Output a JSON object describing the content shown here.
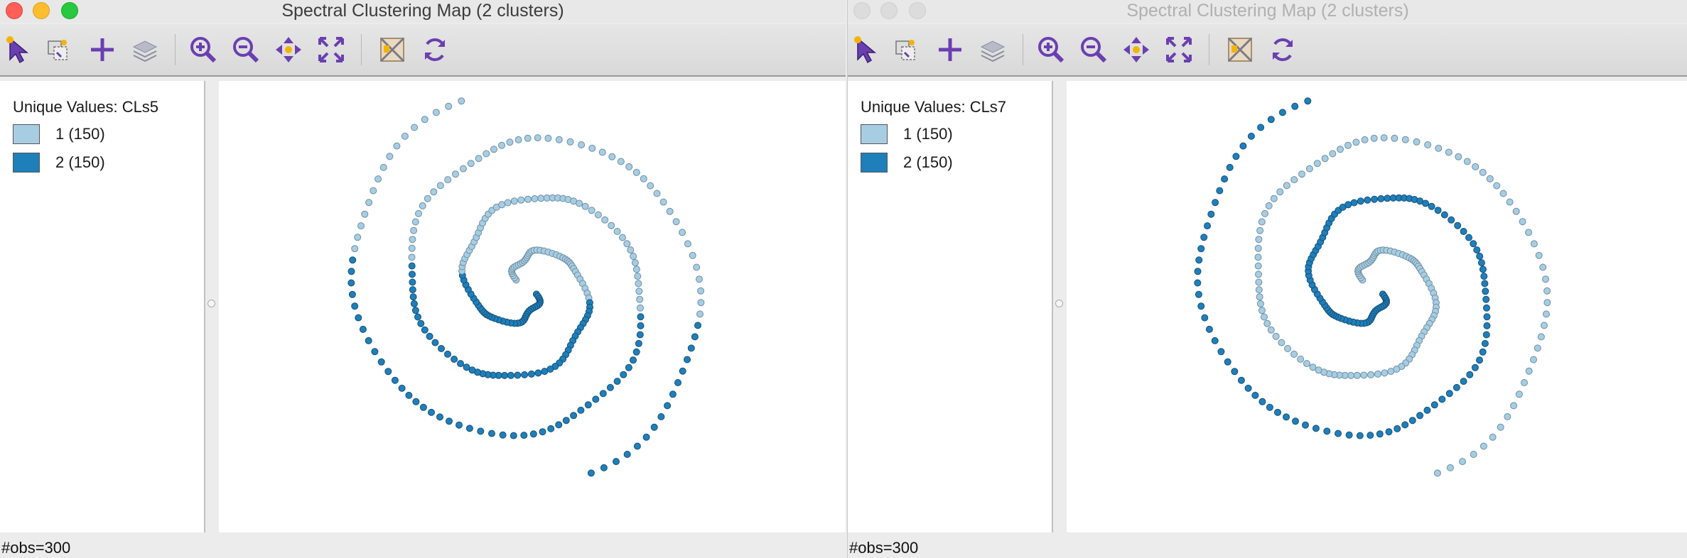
{
  "windows": [
    {
      "title": "Spectral Clustering Map (2 clusters)",
      "legend": {
        "title": "Unique Values: CLs5",
        "items": [
          {
            "label": "1 (150)",
            "color": "#a7cde3"
          },
          {
            "label": "2 (150)",
            "color": "#1f7fba"
          }
        ]
      },
      "status": "#obs=300",
      "toolbar": [
        "select-arrow-icon",
        "select-copy-icon",
        "add-icon",
        "layers-icon",
        "zoom-in-icon",
        "zoom-out-icon",
        "pan-icon",
        "fit-extent-icon",
        "basemap-icon",
        "refresh-icon"
      ],
      "active": true
    },
    {
      "title": "Spectral Clustering Map (2 clusters)",
      "legend": {
        "title": "Unique Values: CLs7",
        "items": [
          {
            "label": "1 (150)",
            "color": "#a7cde3"
          },
          {
            "label": "2 (150)",
            "color": "#1f7fba"
          }
        ]
      },
      "status": "#obs=300",
      "toolbar": [
        "select-arrow-icon",
        "select-copy-icon",
        "add-icon",
        "layers-icon",
        "zoom-in-icon",
        "zoom-out-icon",
        "pan-icon",
        "fit-extent-icon",
        "basemap-icon",
        "refresh-icon"
      ],
      "active": false
    }
  ]
}
